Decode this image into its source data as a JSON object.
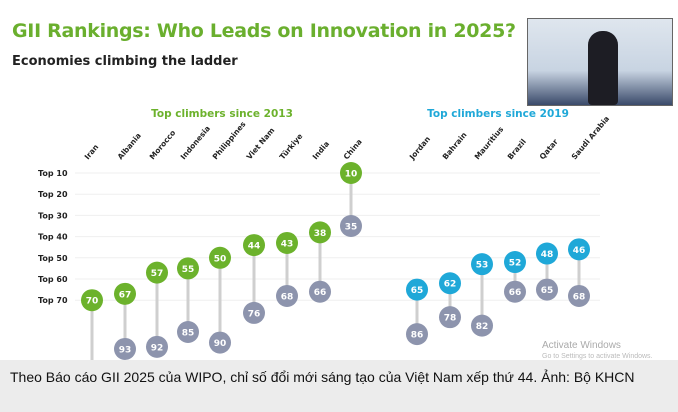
{
  "header": {
    "title": "GII Rankings: Who Leads on Innovation in 2025?",
    "subtitle": "Economies climbing the ladder"
  },
  "chart_data": {
    "type": "dumbbell",
    "y_axis": {
      "tick_labels": [
        "Top 10",
        "Top 20",
        "Top 30",
        "Top 40",
        "Top 50",
        "Top 60",
        "Top 70"
      ],
      "ticks": [
        10,
        20,
        30,
        40,
        50,
        60,
        70
      ],
      "reversed": true
    },
    "grid": true,
    "groups": [
      {
        "title": "Top climbers since 2013",
        "color_current": "#6cb22c",
        "color_past": "#8d94ad",
        "categories": [
          "Iran",
          "Albania",
          "Morocco",
          "Indonesia",
          "Philippines",
          "Viet Nam",
          "Türkiye",
          "India",
          "China"
        ],
        "current": [
          70,
          67,
          57,
          55,
          50,
          44,
          43,
          38,
          10
        ],
        "past": [
          null,
          93,
          92,
          85,
          90,
          76,
          68,
          66,
          35
        ]
      },
      {
        "title": "Top climbers since 2019",
        "color_current": "#1fa8d8",
        "color_past": "#8d94ad",
        "categories": [
          "Jordan",
          "Bahrain",
          "Mauritius",
          "Brazil",
          "Qatar",
          "Saudi Arabia"
        ],
        "current": [
          65,
          62,
          53,
          52,
          48,
          46
        ],
        "past": [
          86,
          78,
          82,
          66,
          65,
          68
        ]
      }
    ]
  },
  "overlay": {
    "watermark_line1": "Activate Windows",
    "watermark_line2": "Go to Settings to activate Windows."
  },
  "caption": "Theo Báo cáo GII 2025 của WIPO, chỉ số đổi mới sáng tạo của Việt Nam xếp thứ 44. Ảnh: Bộ KHCN"
}
